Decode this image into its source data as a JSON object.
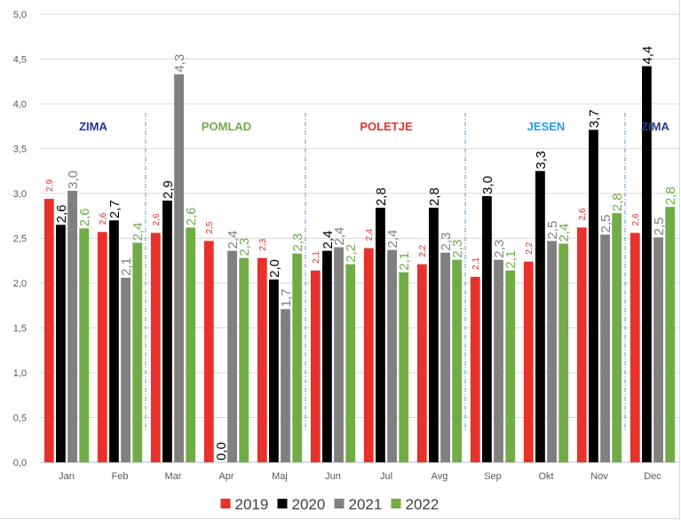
{
  "chart_data": {
    "type": "bar",
    "categories": [
      "Jan",
      "Feb",
      "Mar",
      "Apr",
      "Maj",
      "Jun",
      "Jul",
      "Avg",
      "Sep",
      "Okt",
      "Nov",
      "Dec"
    ],
    "ylim": [
      0,
      5
    ],
    "yticks": [
      "0,0",
      "0,5",
      "1,0",
      "1,5",
      "2,0",
      "2,5",
      "3,0",
      "3,5",
      "4,0",
      "4,5",
      "5,0"
    ],
    "grid": true,
    "legend_position": "bottom",
    "series": [
      {
        "name": "2019",
        "color": "#e8312a",
        "values": [
          2.94,
          2.57,
          2.56,
          2.47,
          2.28,
          2.14,
          2.39,
          2.21,
          2.07,
          2.24,
          2.62,
          2.56
        ],
        "labels": [
          "2,9",
          "2,6",
          "2,6",
          "2,5",
          "2,3",
          "2,1",
          "2,4",
          "2,2",
          "2,1",
          "2,2",
          "2,6",
          "2,6"
        ]
      },
      {
        "name": "2020",
        "color": "#000000",
        "values": [
          2.65,
          2.7,
          2.92,
          0.0,
          2.04,
          2.36,
          2.84,
          2.84,
          2.97,
          3.25,
          3.71,
          4.42
        ],
        "labels": [
          "2,6",
          "2,7",
          "2,9",
          "0,0",
          "2,0",
          "2,4",
          "2,8",
          "2,8",
          "3,0",
          "3,3",
          "3,7",
          "4,4"
        ]
      },
      {
        "name": "2021",
        "color": "#808080",
        "values": [
          3.03,
          2.06,
          4.33,
          2.36,
          1.71,
          2.4,
          2.37,
          2.34,
          2.26,
          2.47,
          2.54,
          2.51
        ],
        "labels": [
          "3,0",
          "2,1",
          "4,3",
          "2,4",
          "1,7",
          "2,4",
          "2,4",
          "2,3",
          "2,3",
          "2,5",
          "2,5",
          "2,5"
        ]
      },
      {
        "name": "2022",
        "color": "#70ad47",
        "values": [
          2.61,
          2.45,
          2.62,
          2.28,
          2.33,
          2.21,
          2.12,
          2.26,
          2.14,
          2.44,
          2.78,
          2.85
        ],
        "labels": [
          "2,6",
          "2,4",
          "2,6",
          "2,3",
          "2,3",
          "2,2",
          "2,1",
          "2,3",
          "2,1",
          "2,4",
          "2,8",
          "2,8"
        ]
      }
    ],
    "annotations": [
      {
        "text": "ZIMA",
        "color": "#1f3a93"
      },
      {
        "text": "POMLAD",
        "color": "#70ad47"
      },
      {
        "text": "POLETJE",
        "color": "#e8312a"
      },
      {
        "text": "JESEN",
        "color": "#1fa0e0"
      },
      {
        "text": "ZIMA",
        "color": "#1f3a93"
      }
    ]
  }
}
